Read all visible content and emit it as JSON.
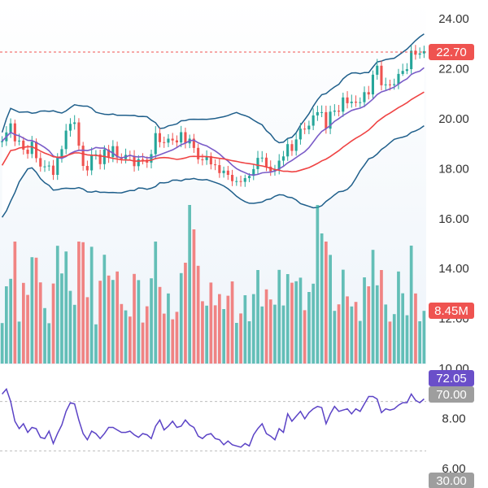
{
  "chart_data": {
    "type": "candlestick",
    "title": "",
    "price_axis": {
      "ticks": [
        "24.00",
        "22.00",
        "20.00",
        "18.00",
        "16.00",
        "14.00",
        "12.00",
        "10.00",
        "8.00",
        "6.00"
      ],
      "ylim": [
        5.5,
        24.8
      ]
    },
    "last_price": {
      "value": 22.7,
      "label": "22.70"
    },
    "volume_badge": {
      "label": "8.45M",
      "color": "#ef5350"
    },
    "rsi_badge": {
      "label": "72.05",
      "color": "#6a4fc9"
    },
    "rsi_level_badge": {
      "label": "70.00",
      "color": "#9e9e9e"
    },
    "rsi_low_badge": {
      "label": "30.00",
      "color": "#9e9e9e"
    },
    "colors": {
      "up": "#26a69a",
      "down": "#ef5350",
      "bollinger": "#1f5f8b",
      "band_fill": "#eaf2f8",
      "ma_fast": "#7a5cc8",
      "ma_slow": "#ef4444",
      "rsi": "#5b43c6",
      "last_price_line": "#ef5350"
    },
    "candles": {
      "close": [
        19.1,
        19.45,
        19.81,
        19.09,
        19.12,
        18.76,
        18.59,
        19.08,
        18.42,
        18.08,
        18.09,
        18.12,
        17.75,
        18.44,
        18.78,
        19.52,
        19.79,
        19.85,
        18.92,
        18.11,
        17.93,
        18.56,
        18.57,
        18.18,
        18.77,
        18.46,
        18.9,
        18.44,
        18.38,
        18.55,
        18.51,
        18.1,
        18.38,
        18.36,
        18.24,
        18.58,
        19.42,
        19.06,
        19.04,
        19.2,
        19.13,
        19.05,
        19.46,
        19.01,
        19.2,
        18.83,
        18.37,
        18.34,
        18.5,
        18.17,
        18.14,
        17.82,
        17.92,
        17.75,
        17.5,
        17.5,
        17.47,
        17.62,
        17.71,
        17.98,
        18.43,
        18.44,
        18.08,
        17.89,
        17.96,
        18.32,
        18.49,
        18.98,
        18.71,
        19.17,
        19.6,
        19.57,
        19.72,
        20.13,
        20.26,
        20.26,
        19.6,
        20.28,
        20.32,
        20.28,
        20.85,
        20.62,
        20.68,
        20.64,
        20.66,
        21.06,
        20.97,
        21.76,
        22.12,
        21.34,
        21.37,
        21.34,
        21.38,
        21.79,
        21.91,
        21.98,
        22.72,
        22.56,
        22.61,
        22.7
      ],
      "open": [
        19.06,
        19.1,
        19.45,
        19.81,
        19.09,
        19.12,
        18.76,
        18.59,
        19.08,
        18.42,
        18.08,
        18.09,
        18.12,
        17.75,
        18.44,
        18.78,
        19.52,
        19.79,
        19.85,
        18.92,
        18.11,
        17.93,
        18.56,
        18.57,
        18.18,
        18.77,
        18.46,
        18.9,
        18.44,
        18.38,
        18.55,
        18.51,
        18.1,
        18.38,
        18.36,
        18.24,
        18.58,
        19.42,
        19.06,
        19.04,
        19.2,
        19.13,
        19.05,
        19.46,
        19.01,
        19.2,
        18.83,
        18.37,
        18.34,
        18.5,
        18.17,
        18.14,
        17.82,
        17.92,
        17.75,
        17.5,
        17.5,
        17.47,
        17.62,
        17.71,
        17.98,
        18.43,
        18.44,
        18.08,
        17.89,
        17.96,
        18.32,
        18.49,
        18.98,
        18.71,
        19.17,
        19.6,
        19.57,
        19.72,
        20.13,
        20.26,
        20.26,
        19.6,
        20.28,
        20.32,
        20.28,
        20.85,
        20.62,
        20.68,
        20.64,
        20.66,
        21.06,
        20.97,
        21.76,
        22.12,
        21.34,
        21.37,
        21.34,
        21.38,
        21.79,
        21.91,
        21.98,
        22.72,
        22.56,
        22.61
      ],
      "high": [
        19.3,
        19.7,
        20.01,
        19.96,
        19.4,
        19.27,
        18.95,
        19.31,
        19.21,
        18.65,
        18.34,
        18.29,
        18.35,
        18.62,
        18.92,
        19.79,
        20.02,
        20.14,
        20.02,
        19.07,
        18.32,
        18.85,
        18.74,
        18.76,
        18.93,
        18.95,
        19.14,
        19.08,
        18.61,
        18.8,
        18.72,
        18.74,
        18.54,
        18.62,
        18.49,
        18.76,
        19.7,
        19.63,
        19.28,
        19.38,
        19.43,
        19.33,
        19.71,
        19.64,
        19.36,
        19.39,
        18.99,
        18.59,
        18.73,
        18.65,
        18.37,
        18.39,
        18.08,
        18.11,
        17.95,
        17.67,
        17.72,
        17.76,
        17.82,
        18.17,
        18.71,
        18.7,
        18.62,
        18.33,
        18.15,
        18.58,
        18.71,
        19.19,
        19.14,
        19.41,
        19.83,
        19.85,
        19.92,
        20.41,
        20.52,
        20.53,
        20.52,
        20.52,
        20.58,
        20.55,
        21.04,
        21.1,
        20.96,
        20.93,
        20.85,
        21.29,
        21.31,
        21.93,
        22.39,
        22.32,
        21.64,
        21.56,
        21.6,
        21.99,
        22.2,
        22.22,
        22.93,
        22.95,
        22.85,
        22.92
      ],
      "low": [
        18.86,
        18.91,
        19.23,
        18.9,
        18.93,
        18.56,
        18.4,
        18.42,
        18.25,
        17.88,
        17.87,
        17.91,
        17.55,
        17.55,
        18.24,
        18.58,
        19.28,
        19.56,
        18.72,
        17.92,
        17.71,
        17.74,
        18.36,
        17.97,
        17.96,
        18.23,
        18.26,
        18.22,
        18.2,
        18.21,
        18.32,
        17.88,
        17.92,
        18.17,
        18.03,
        18.01,
        18.37,
        18.85,
        18.83,
        18.86,
        18.95,
        18.85,
        18.86,
        18.81,
        18.82,
        18.63,
        18.19,
        18.13,
        18.15,
        17.97,
        17.94,
        17.63,
        17.64,
        17.55,
        17.3,
        17.31,
        17.28,
        17.27,
        17.46,
        17.54,
        17.79,
        18.26,
        17.9,
        17.71,
        17.72,
        17.77,
        18.12,
        18.31,
        18.51,
        18.52,
        18.96,
        19.38,
        19.38,
        19.54,
        19.91,
        20.06,
        19.4,
        19.38,
        20.11,
        20.09,
        20.07,
        20.41,
        20.44,
        20.47,
        20.45,
        20.46,
        20.77,
        20.78,
        21.56,
        21.13,
        21.15,
        21.13,
        21.16,
        21.18,
        21.71,
        21.78,
        21.8,
        22.36,
        22.4,
        22.43
      ]
    },
    "rsi": [
      76,
      80,
      70,
      54,
      48,
      52,
      45,
      49,
      48,
      41,
      40,
      46,
      36,
      44,
      51,
      62,
      69,
      68,
      55,
      44,
      39,
      46,
      44,
      40,
      44,
      49,
      49,
      47,
      45,
      45,
      46,
      43,
      41,
      44,
      43,
      40,
      50,
      55,
      47,
      50,
      54,
      49,
      50,
      55,
      51,
      49,
      42,
      40,
      43,
      44,
      40,
      39,
      35,
      38,
      35,
      34,
      33,
      36,
      34,
      43,
      48,
      52,
      44,
      42,
      39,
      48,
      45,
      60,
      54,
      58,
      62,
      56,
      61,
      64,
      66,
      65,
      52,
      60,
      66,
      62,
      63,
      64,
      60,
      64,
      62,
      68,
      74,
      74,
      72,
      61,
      64,
      63,
      64,
      67,
      69,
      69,
      76,
      71,
      69,
      72.05
    ]
  }
}
